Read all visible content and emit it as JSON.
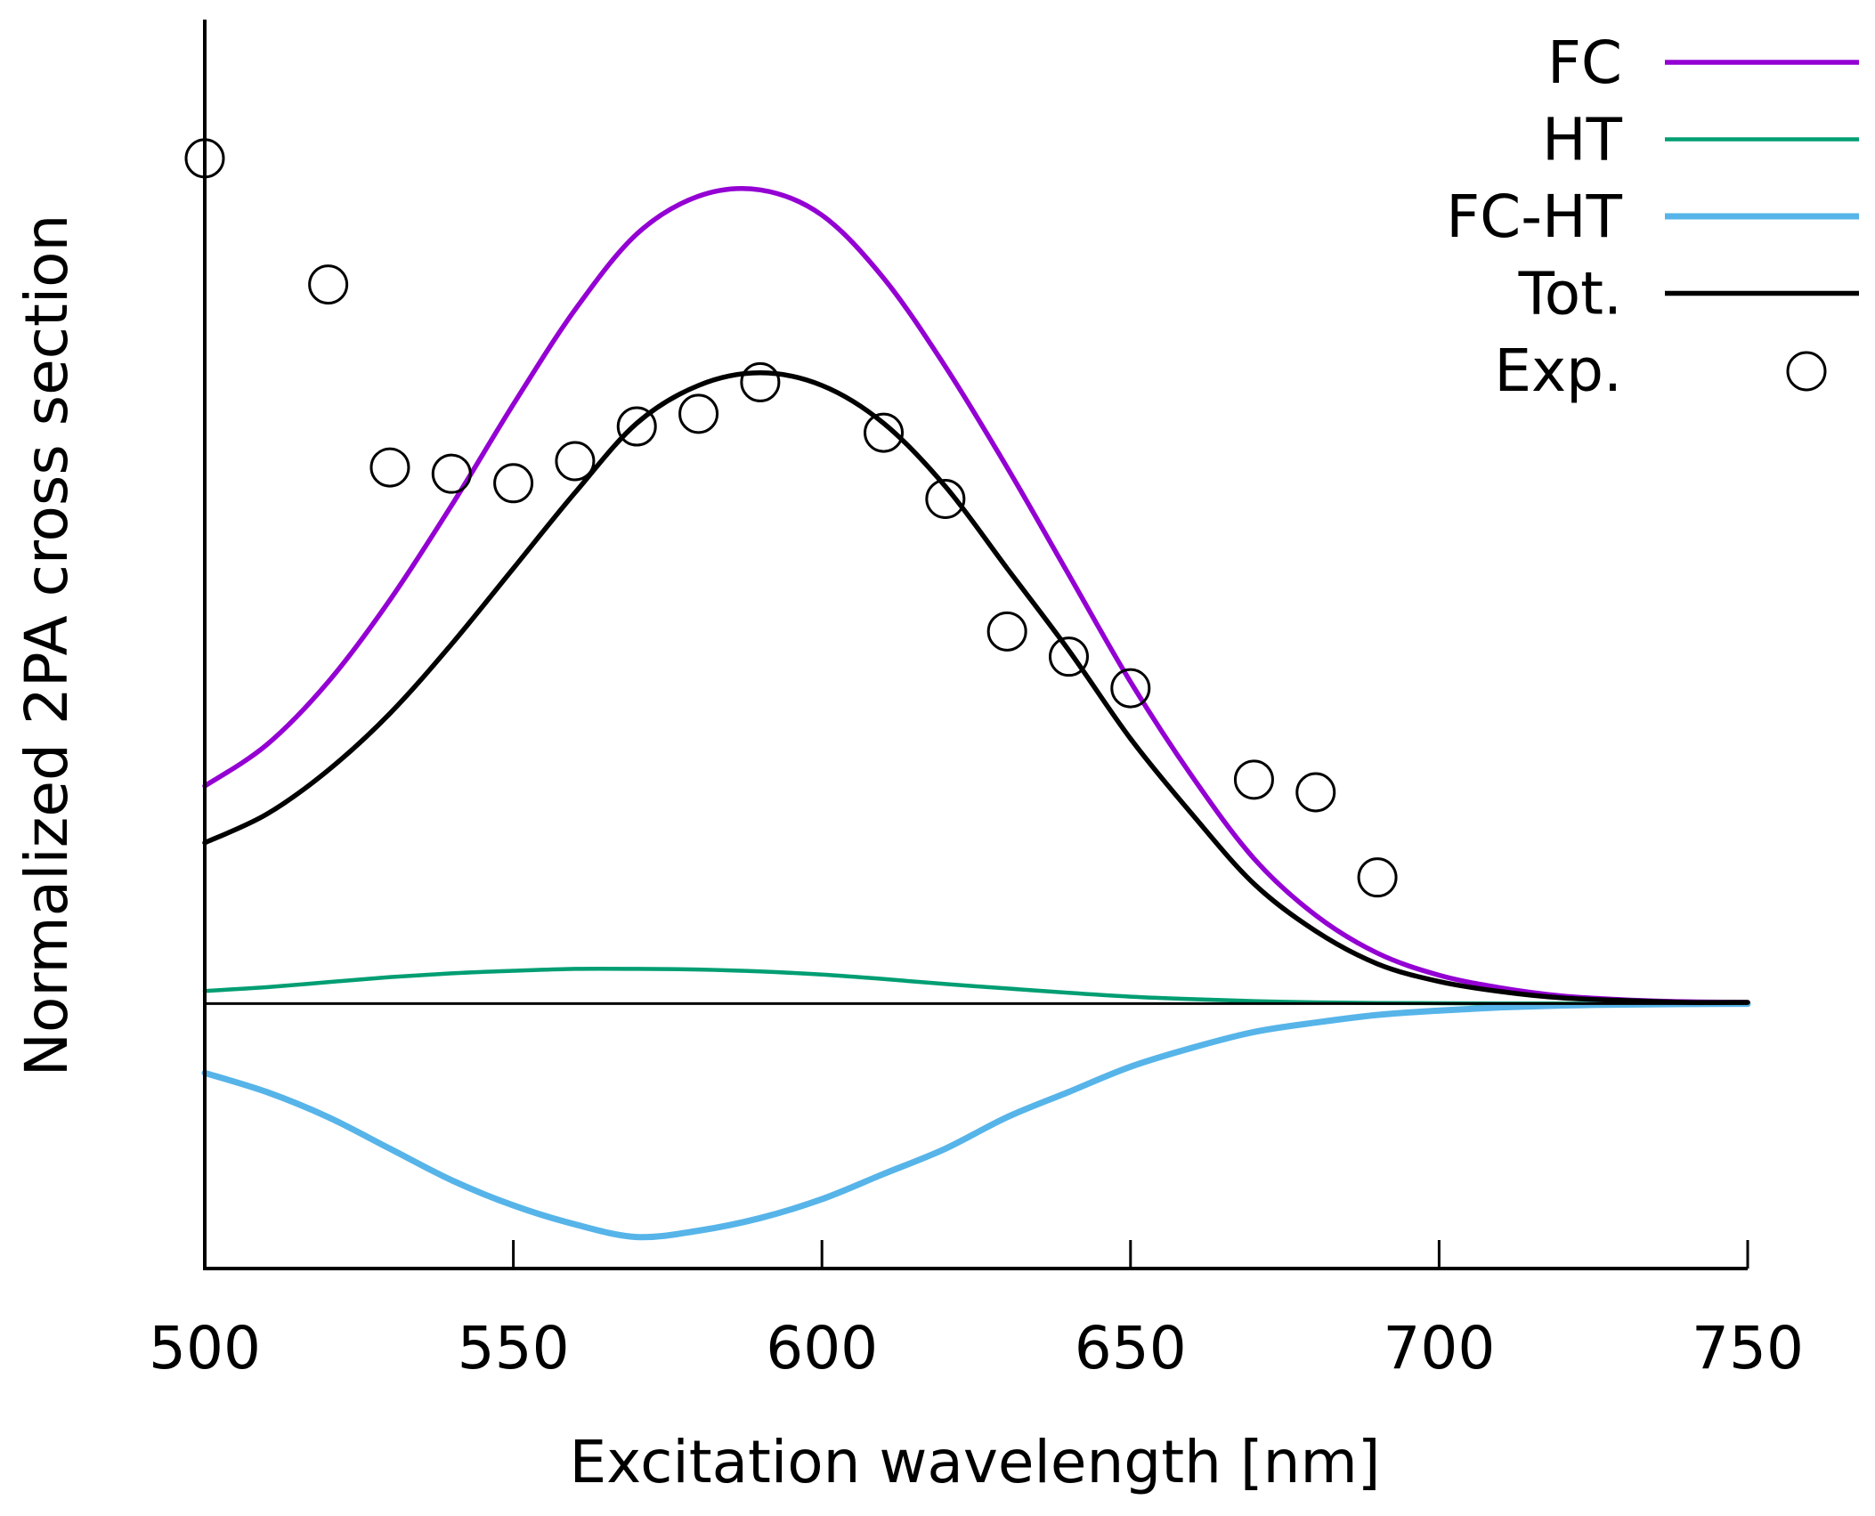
{
  "chart_data": {
    "type": "line",
    "xlabel": "Excitation wavelength [nm]",
    "ylabel": "Normalized 2PA cross section",
    "xlim": [
      500,
      750
    ],
    "ylim": [
      -0.42,
      1.56
    ],
    "xticks": [
      500,
      550,
      600,
      650,
      700,
      750
    ],
    "xtick_labels": [
      "500",
      "550",
      "600",
      "650",
      "700",
      "750"
    ],
    "y_tick_labels_shown": false,
    "zero_line": true,
    "legend_position": "top-right",
    "series": [
      {
        "name": "FC",
        "color": "#9400D3",
        "x": [
          500,
          510,
          520,
          530,
          540,
          550,
          560,
          570,
          580,
          590,
          600,
          610,
          620,
          630,
          640,
          650,
          660,
          670,
          680,
          690,
          700,
          710,
          720,
          730,
          740,
          750
        ],
        "y": [
          0.345,
          0.41,
          0.51,
          0.64,
          0.79,
          0.95,
          1.1,
          1.22,
          1.28,
          1.29,
          1.25,
          1.15,
          1.01,
          0.85,
          0.68,
          0.51,
          0.36,
          0.23,
          0.14,
          0.08,
          0.045,
          0.025,
          0.012,
          0.006,
          0.003,
          0.002
        ]
      },
      {
        "name": "HT",
        "color": "#009E73",
        "x": [
          500,
          510,
          520,
          530,
          540,
          550,
          560,
          570,
          580,
          590,
          600,
          610,
          620,
          630,
          640,
          650,
          660,
          670,
          680,
          690,
          700,
          710,
          720,
          730,
          740,
          750
        ],
        "y": [
          0.02,
          0.026,
          0.034,
          0.042,
          0.048,
          0.052,
          0.055,
          0.055,
          0.054,
          0.051,
          0.046,
          0.039,
          0.031,
          0.024,
          0.017,
          0.011,
          0.007,
          0.004,
          0.002,
          0.001,
          0.0005,
          0.0002,
          0.0001,
          0.0,
          0.0,
          0.0
        ]
      },
      {
        "name": "FC-HT",
        "color": "#56B4E9",
        "x": [
          500,
          510,
          520,
          530,
          540,
          550,
          560,
          570,
          580,
          590,
          600,
          610,
          620,
          630,
          640,
          650,
          660,
          670,
          680,
          690,
          700,
          710,
          720,
          730,
          740,
          750
        ],
        "y": [
          -0.11,
          -0.14,
          -0.18,
          -0.23,
          -0.28,
          -0.32,
          -0.35,
          -0.37,
          -0.36,
          -0.34,
          -0.31,
          -0.27,
          -0.23,
          -0.18,
          -0.14,
          -0.1,
          -0.07,
          -0.045,
          -0.03,
          -0.018,
          -0.011,
          -0.006,
          -0.003,
          -0.0015,
          -0.0007,
          -0.0003
        ]
      },
      {
        "name": "Tot.",
        "color": "#000000",
        "x": [
          500,
          510,
          520,
          530,
          540,
          550,
          560,
          570,
          580,
          590,
          600,
          610,
          620,
          630,
          640,
          650,
          660,
          670,
          680,
          690,
          700,
          710,
          720,
          730,
          740,
          750
        ],
        "y": [
          0.255,
          0.3,
          0.37,
          0.46,
          0.57,
          0.69,
          0.81,
          0.92,
          0.98,
          1.0,
          0.98,
          0.92,
          0.82,
          0.69,
          0.56,
          0.42,
          0.3,
          0.19,
          0.115,
          0.063,
          0.035,
          0.019,
          0.009,
          0.005,
          0.002,
          0.002
        ]
      }
    ],
    "scatter": {
      "name": "Exp.",
      "marker": "open-circle",
      "color": "#000000",
      "x": [
        500,
        520,
        530,
        540,
        550,
        560,
        570,
        580,
        590,
        610,
        620,
        630,
        640,
        650,
        670,
        680,
        690
      ],
      "y": [
        1.34,
        1.14,
        0.85,
        0.84,
        0.825,
        0.86,
        0.915,
        0.935,
        0.985,
        0.905,
        0.8,
        0.59,
        0.55,
        0.5,
        0.355,
        0.335,
        0.2
      ]
    },
    "legend": [
      {
        "label": "FC",
        "kind": "line",
        "color": "#9400D3"
      },
      {
        "label": "HT",
        "kind": "line",
        "color": "#009E73"
      },
      {
        "label": "FC-HT",
        "kind": "line",
        "color": "#56B4E9"
      },
      {
        "label": "Tot.",
        "kind": "line",
        "color": "#000000"
      },
      {
        "label": "Exp.",
        "kind": "marker",
        "color": "#000000"
      }
    ]
  }
}
